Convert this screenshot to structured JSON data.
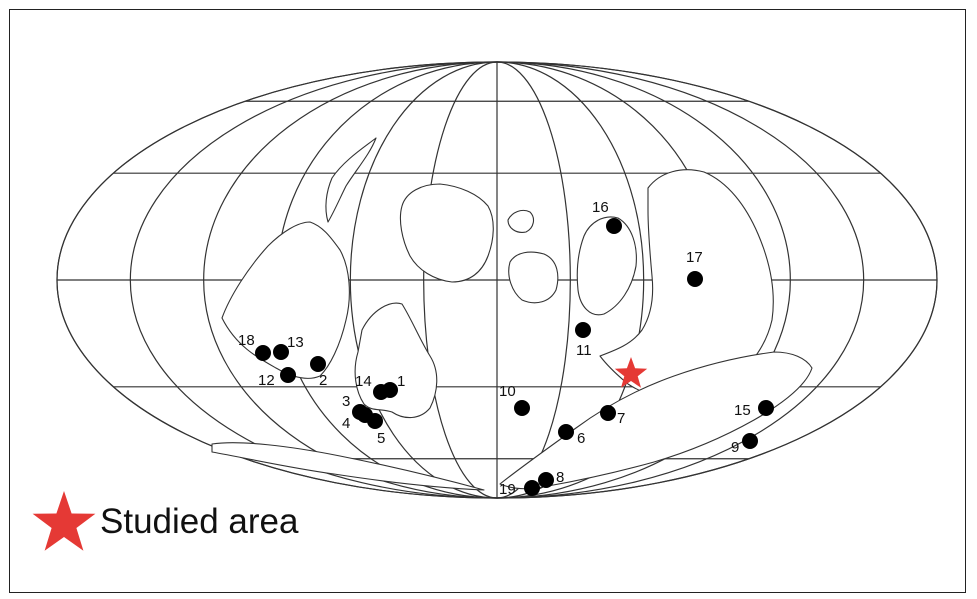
{
  "legend": {
    "label": "Studied area",
    "marker_color": "#e53935"
  },
  "colors": {
    "outline": "#333333",
    "site_marker": "#000000",
    "studied_star": "#e53935"
  },
  "sites": [
    {
      "id": "1",
      "label": "1"
    },
    {
      "id": "2",
      "label": "2"
    },
    {
      "id": "3",
      "label": "3"
    },
    {
      "id": "4",
      "label": "4"
    },
    {
      "id": "5",
      "label": "5"
    },
    {
      "id": "6",
      "label": "6"
    },
    {
      "id": "7",
      "label": "7"
    },
    {
      "id": "8",
      "label": "8"
    },
    {
      "id": "9",
      "label": "9"
    },
    {
      "id": "10",
      "label": "10"
    },
    {
      "id": "11",
      "label": "11"
    },
    {
      "id": "12",
      "label": "12"
    },
    {
      "id": "13",
      "label": "13"
    },
    {
      "id": "14",
      "label": "14"
    },
    {
      "id": "15",
      "label": "15"
    },
    {
      "id": "16",
      "label": "16"
    },
    {
      "id": "17",
      "label": "17"
    },
    {
      "id": "18",
      "label": "18"
    },
    {
      "id": "19",
      "label": "19"
    }
  ]
}
